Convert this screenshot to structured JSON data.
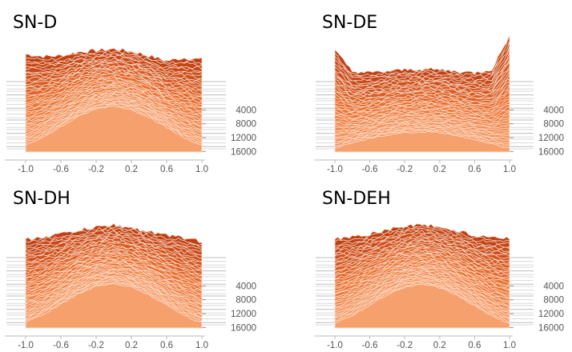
{
  "chart_data": [
    {
      "type": "area",
      "title": "SN-D",
      "x_range": [
        -1.0,
        1.0
      ],
      "x_ticks": [
        "-1.0",
        "-0.6",
        "-0.2",
        "0.2",
        "0.6",
        "1.0"
      ],
      "depth_ticks": [
        "4000",
        "8000",
        "12000",
        "16000"
      ],
      "depth_range": [
        0,
        18000
      ],
      "profile": "dome",
      "x": [
        -1.0,
        -0.8,
        -0.6,
        -0.4,
        -0.2,
        0.0,
        0.2,
        0.4,
        0.6,
        0.8,
        1.0
      ],
      "front_layer": [
        0.1,
        0.2,
        0.34,
        0.48,
        0.58,
        0.62,
        0.57,
        0.47,
        0.33,
        0.19,
        0.09
      ],
      "back_layer": [
        0.95,
        0.92,
        0.93,
        0.98,
        1.0,
        1.02,
        0.99,
        0.93,
        0.86,
        0.9,
        0.88
      ],
      "colors": {
        "front": "#f6a06d",
        "mid": "#ea7132",
        "back": "#bf3e12",
        "lines": "#fde8d8"
      }
    },
    {
      "type": "area",
      "title": "SN-DE",
      "x_range": [
        -1.0,
        1.0
      ],
      "x_ticks": [
        "-1.0",
        "-0.6",
        "-0.2",
        "0.2",
        "0.6",
        "1.0"
      ],
      "depth_ticks": [
        "4000",
        "8000",
        "12000",
        "16000"
      ],
      "depth_range": [
        0,
        18000
      ],
      "profile": "flat-with-edge-peaks",
      "x": [
        -1.0,
        -0.8,
        -0.6,
        -0.4,
        -0.2,
        0.0,
        0.2,
        0.4,
        0.6,
        0.8,
        1.0
      ],
      "front_layer": [
        0.05,
        0.12,
        0.18,
        0.23,
        0.26,
        0.27,
        0.26,
        0.22,
        0.17,
        0.11,
        0.05
      ],
      "back_layer": [
        1.0,
        0.72,
        0.7,
        0.72,
        0.74,
        0.75,
        0.74,
        0.72,
        0.7,
        0.75,
        1.2
      ],
      "colors": {
        "front": "#f6a06d",
        "mid": "#ea7132",
        "back": "#bf3e12",
        "lines": "#fde8d8"
      }
    },
    {
      "type": "area",
      "title": "SN-DH",
      "x_range": [
        -1.0,
        1.0
      ],
      "x_ticks": [
        "-1.0",
        "-0.6",
        "-0.2",
        "0.2",
        "0.6",
        "1.0"
      ],
      "depth_ticks": [
        "4000",
        "8000",
        "12000",
        "16000"
      ],
      "depth_range": [
        0,
        18000
      ],
      "profile": "dome",
      "x": [
        -1.0,
        -0.8,
        -0.6,
        -0.4,
        -0.2,
        0.0,
        0.2,
        0.4,
        0.6,
        0.8,
        1.0
      ],
      "front_layer": [
        0.08,
        0.18,
        0.32,
        0.46,
        0.56,
        0.6,
        0.55,
        0.45,
        0.31,
        0.17,
        0.07
      ],
      "back_layer": [
        0.82,
        0.86,
        0.9,
        0.95,
        0.99,
        1.02,
        0.98,
        0.93,
        0.88,
        0.85,
        0.8
      ],
      "colors": {
        "front": "#f6a06d",
        "mid": "#ea7132",
        "back": "#bf3e12",
        "lines": "#fde8d8"
      }
    },
    {
      "type": "area",
      "title": "SN-DEH",
      "x_range": [
        -1.0,
        1.0
      ],
      "x_ticks": [
        "-1.0",
        "-0.6",
        "-0.2",
        "0.2",
        "0.6",
        "1.0"
      ],
      "depth_ticks": [
        "4000",
        "8000",
        "12000",
        "16000"
      ],
      "depth_range": [
        0,
        18000
      ],
      "profile": "dome",
      "x": [
        -1.0,
        -0.8,
        -0.6,
        -0.4,
        -0.2,
        0.0,
        0.2,
        0.4,
        0.6,
        0.8,
        1.0
      ],
      "front_layer": [
        0.07,
        0.17,
        0.31,
        0.45,
        0.55,
        0.59,
        0.54,
        0.44,
        0.3,
        0.16,
        0.06
      ],
      "back_layer": [
        0.84,
        0.86,
        0.9,
        0.96,
        1.0,
        1.03,
        0.99,
        0.94,
        0.88,
        0.86,
        0.85
      ],
      "colors": {
        "front": "#f6a06d",
        "mid": "#ea7132",
        "back": "#bf3e12",
        "lines": "#fde8d8"
      }
    }
  ]
}
